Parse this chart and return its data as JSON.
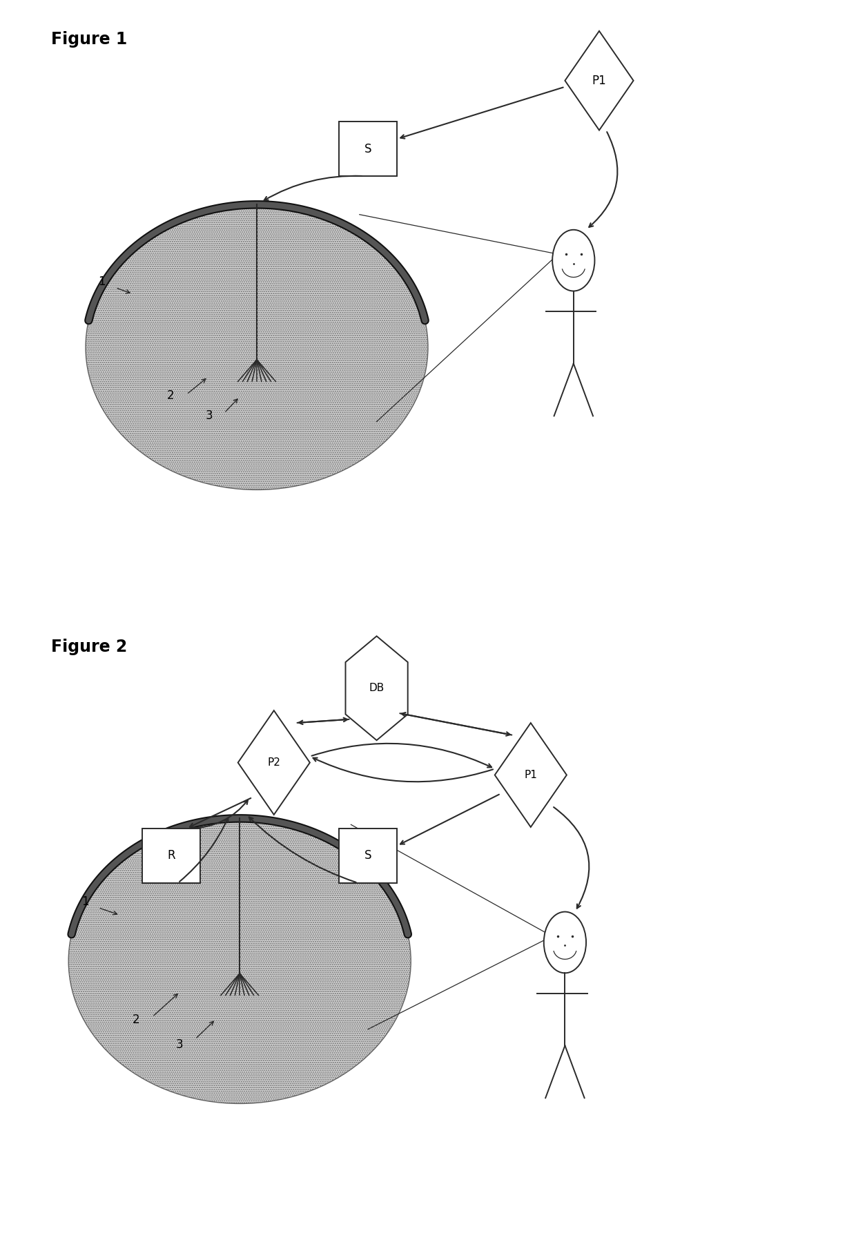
{
  "fig_title1": "Figure 1",
  "fig_title2": "Figure 2",
  "bg_color": "#ffffff",
  "line_color": "#2a2a2a",
  "node_S1": "S",
  "node_P1_fig1": "P1",
  "node_DB": "DB",
  "node_P2": "P2",
  "node_P1_fig2": "P1",
  "node_R": "R",
  "node_S2": "S",
  "label1": "1",
  "label2": "2",
  "label3": "3"
}
